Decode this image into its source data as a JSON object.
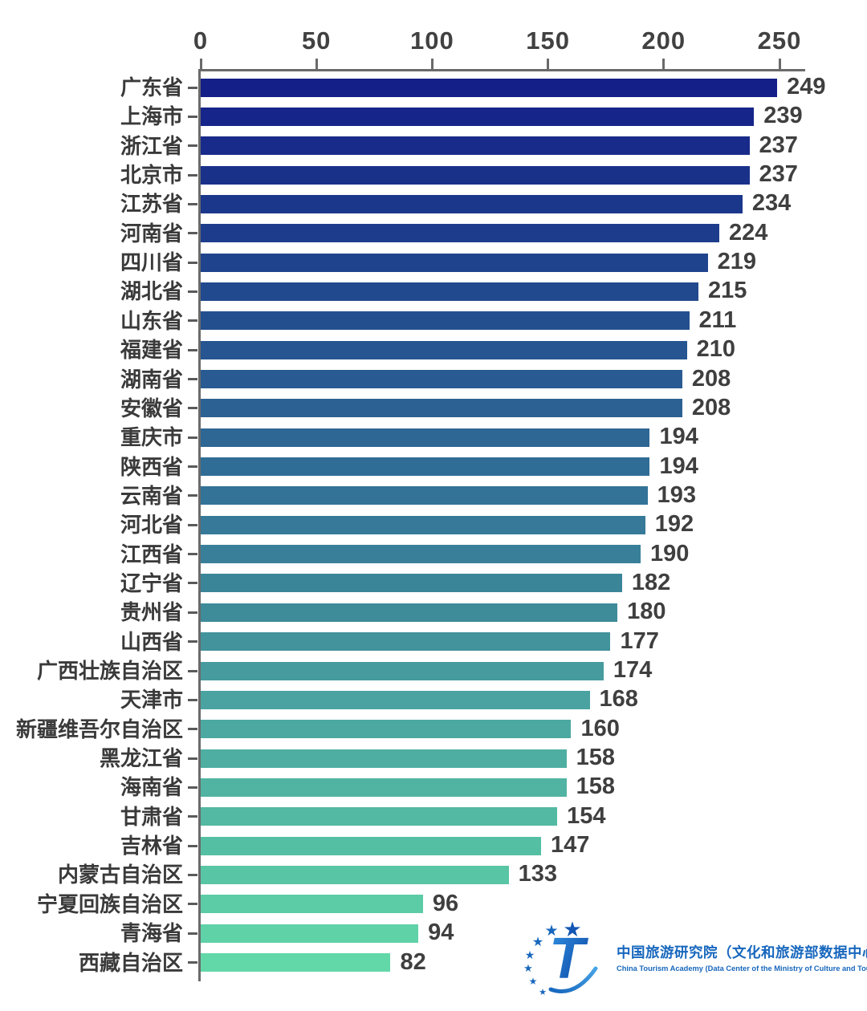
{
  "chart_data": {
    "type": "bar",
    "orientation": "horizontal",
    "title": "",
    "xlabel": "",
    "ylabel": "",
    "x_axis": {
      "position": "top",
      "ticks": [
        0,
        50,
        100,
        150,
        200,
        250
      ],
      "max": 261,
      "grid": false
    },
    "value_labels_shown": true,
    "legend": "none",
    "categories": [
      "广东省",
      "上海市",
      "浙江省",
      "北京市",
      "江苏省",
      "河南省",
      "四川省",
      "湖北省",
      "山东省",
      "福建省",
      "湖南省",
      "安徽省",
      "重庆市",
      "陕西省",
      "云南省",
      "河北省",
      "江西省",
      "辽宁省",
      "贵州省",
      "山西省",
      "广西壮族自治区",
      "天津市",
      "新疆维吾尔自治区",
      "黑龙江省",
      "海南省",
      "甘肃省",
      "吉林省",
      "内蒙古自治区",
      "宁夏回族自治区",
      "青海省",
      "西藏自治区"
    ],
    "values": [
      249,
      239,
      237,
      237,
      234,
      224,
      219,
      215,
      211,
      210,
      208,
      208,
      194,
      194,
      193,
      192,
      190,
      182,
      180,
      177,
      174,
      168,
      160,
      158,
      158,
      154,
      147,
      133,
      96,
      94,
      82
    ],
    "bar_colors": [
      "#141F88",
      "#162589",
      "#182B8A",
      "#1A318A",
      "#1B378B",
      "#1D3D8C",
      "#1F438D",
      "#21498E",
      "#244F8F",
      "#265591",
      "#295B92",
      "#2B6193",
      "#2E6794",
      "#306D96",
      "#337397",
      "#367998",
      "#397F99",
      "#3B8599",
      "#3E8B9A",
      "#42939C",
      "#469B9E",
      "#4AA3A0",
      "#4CA9A1",
      "#4EAEA1",
      "#51B4A2",
      "#53B9A2",
      "#55BFA3",
      "#58C5A4",
      "#5BCCA5",
      "#5FD2A7",
      "#62D8A8"
    ]
  },
  "colors": {
    "axis_line": "#6a6a6a",
    "tick_label": "#414141",
    "category_label": "#3a3a3a",
    "value_label": "#3f3f3f",
    "logo_blue": "#1767bd",
    "background": "#ffffff"
  },
  "logo": {
    "title_zh": "中国旅游研究院（文化和旅游部数据中心）",
    "subtitle_en": "China Tourism Academy (Data Center of the Ministry of Culture and Tourism)"
  }
}
